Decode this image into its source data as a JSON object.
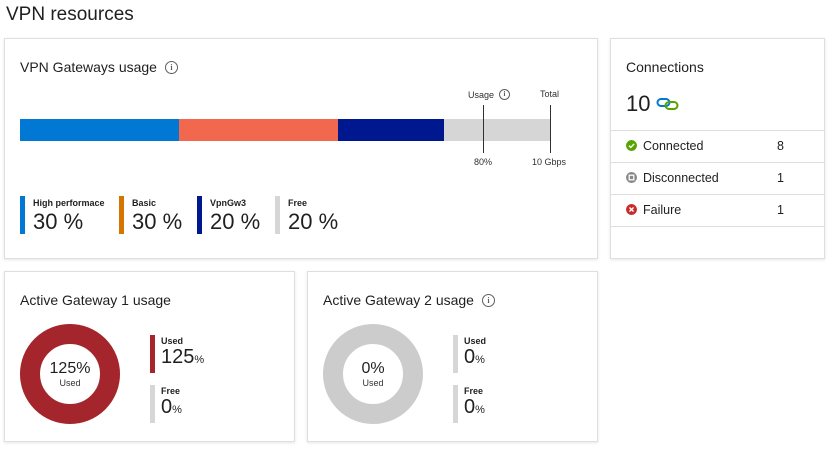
{
  "page": {
    "title": "VPN resources"
  },
  "gateways_usage": {
    "title": "VPN Gateways usage",
    "usage_label": "Usage",
    "total_label": "Total",
    "usage_mark": "80%",
    "total_mark": "10 Gbps",
    "usage_fraction": 0.8,
    "segments": [
      {
        "name": "High performace",
        "value": "30 %",
        "percent": 30,
        "color": "#0078d4"
      },
      {
        "name": "Basic",
        "value": "30 %",
        "percent": 30,
        "color": "#f1684e"
      },
      {
        "name": "VpnGw3",
        "value": "20 %",
        "percent": 20,
        "color": "#00188f"
      },
      {
        "name": "Free",
        "value": "20 %",
        "percent": 20,
        "color": "#d6d6d6"
      }
    ],
    "legend_colors": [
      "#0078d4",
      "#d47500",
      "#00188f",
      "#d6d6d6"
    ]
  },
  "connections": {
    "title": "Connections",
    "total": "10",
    "total_icon": "link-icon",
    "rows": [
      {
        "label": "Connected",
        "count": "8",
        "icon": "check-circle-icon",
        "color": "#57a300"
      },
      {
        "label": "Disconnected",
        "count": "1",
        "icon": "stop-circle-icon",
        "color": "#8a8886"
      },
      {
        "label": "Failure",
        "count": "1",
        "icon": "error-circle-icon",
        "color": "#c72c2c"
      }
    ]
  },
  "active_gateway_1": {
    "title": "Active Gateway 1 usage",
    "center_value": "125%",
    "center_label": "Used",
    "used_fraction": 1.0,
    "ring_color": "#a4262c",
    "used_label": "Used",
    "used_value": "125",
    "used_unit": "%",
    "free_label": "Free",
    "free_value": "0",
    "free_unit": "%"
  },
  "active_gateway_2": {
    "title": "Active Gateway 2 usage",
    "center_value": "0%",
    "center_label": "Used",
    "used_fraction": 0.0,
    "ring_color": "#cccccc",
    "used_label": "Used",
    "used_value": "0",
    "used_unit": "%",
    "free_label": "Free",
    "free_value": "0",
    "free_unit": "%"
  }
}
